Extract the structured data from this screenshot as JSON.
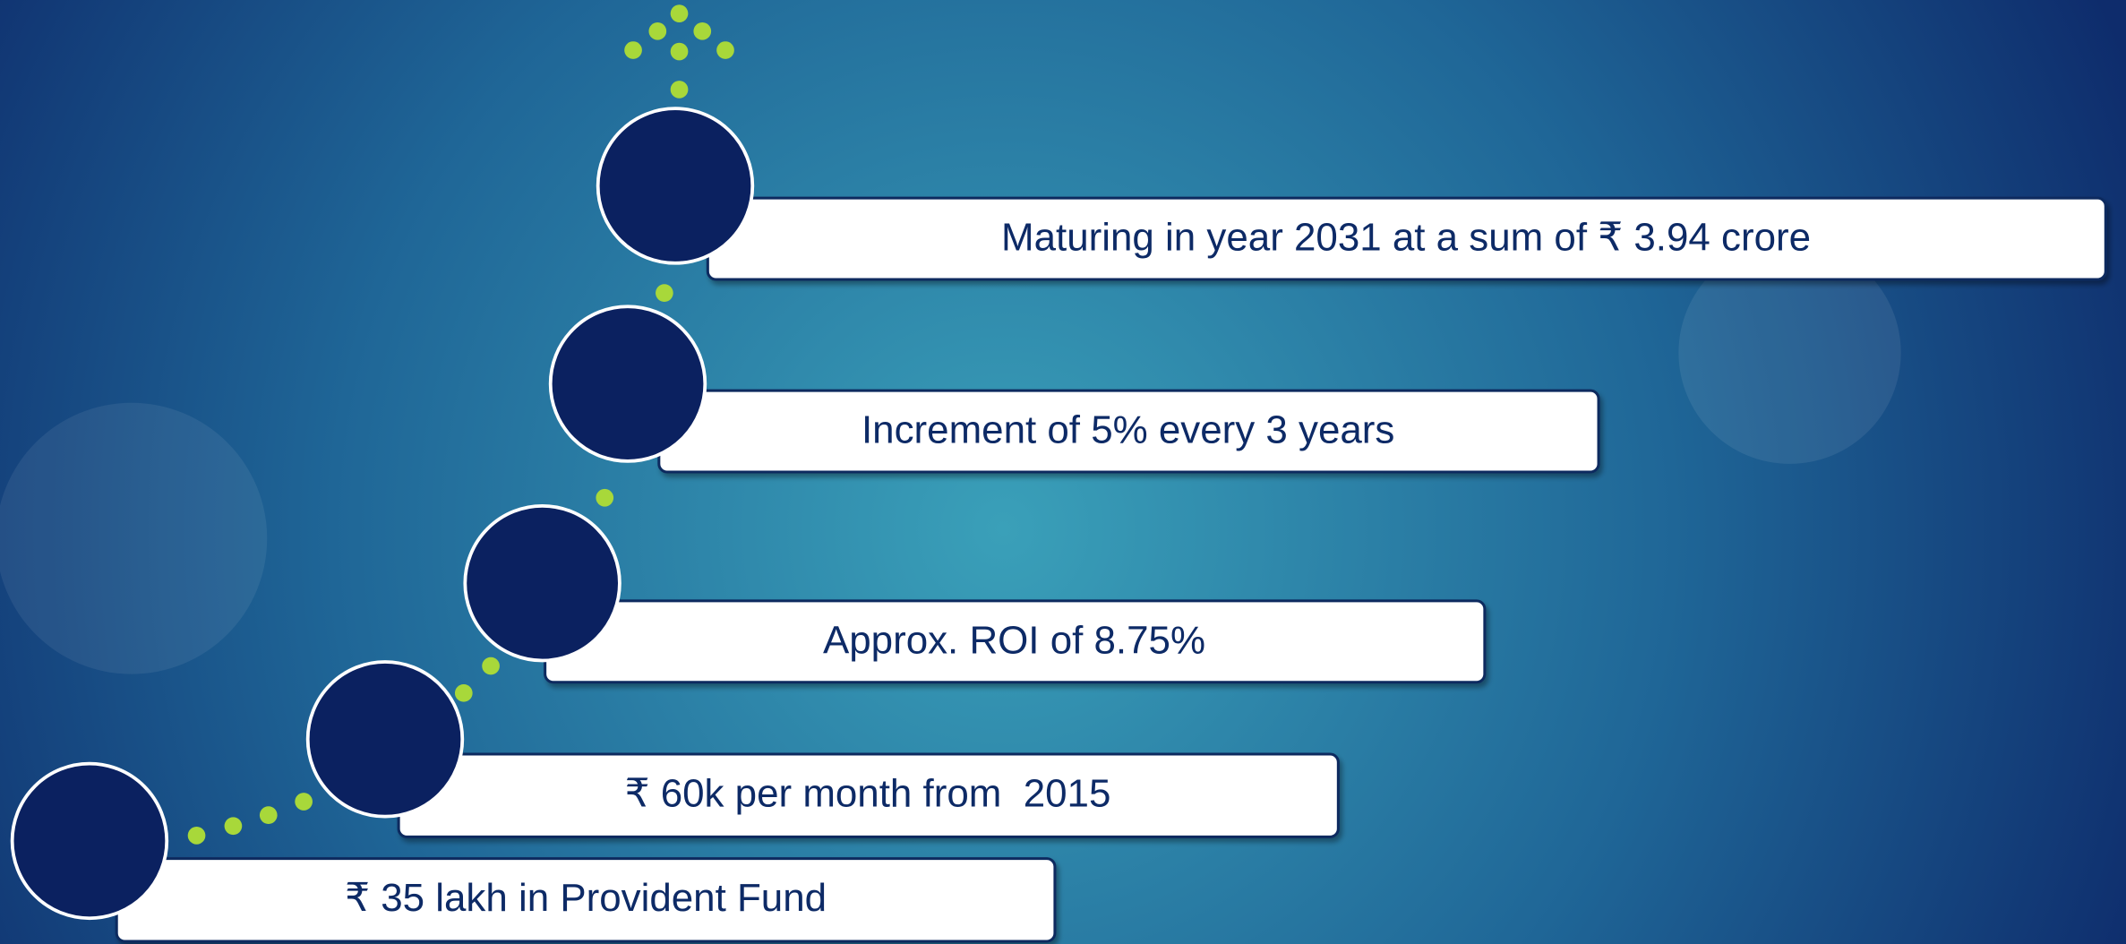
{
  "steps": [
    {
      "text": "Maturing in year 2031 at a sum of ₹ 3.94 crore"
    },
    {
      "text": "Increment of 5% every 3 years"
    },
    {
      "text": "Approx. ROI of 8.75%"
    },
    {
      "text": "₹ 60k per month from  2015"
    },
    {
      "text": "₹ 35 lakh in Provident Fund"
    }
  ]
}
